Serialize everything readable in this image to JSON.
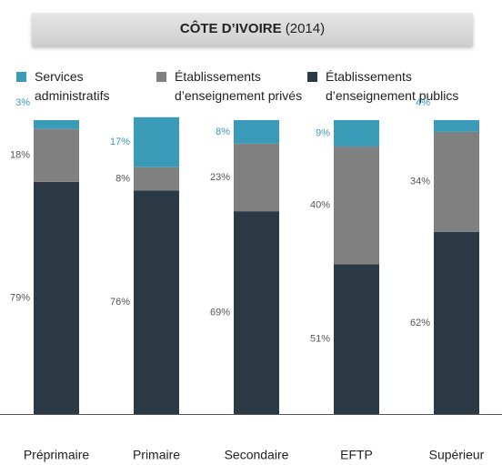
{
  "chart_data": {
    "type": "stacked_bar",
    "title": "CÔTE D’IVOIRE",
    "subtitle": "(2014)",
    "categories": [
      "Préprimaire",
      "Primaire",
      "Secondaire",
      "EFTP",
      "Supérieur"
    ],
    "series": [
      {
        "name": "Services administratifs",
        "color": "#3a9bb8",
        "values": [
          3,
          17,
          8,
          9,
          4
        ],
        "value_labels": [
          "3%",
          "17%",
          "8%",
          "9%",
          "4%"
        ]
      },
      {
        "name": "Établissements d’enseignement privés",
        "color": "#808080",
        "values": [
          18,
          8,
          23,
          40,
          34
        ],
        "value_labels": [
          "18%",
          "8%",
          "23%",
          "40%",
          "34%"
        ]
      },
      {
        "name": "Établissements d’enseignement publics",
        "color": "#2b3a44",
        "values": [
          79,
          76,
          69,
          51,
          62
        ],
        "value_labels": [
          "79%",
          "76%",
          "69%",
          "51%",
          "62%"
        ]
      }
    ],
    "ylim": [
      0,
      100
    ]
  }
}
